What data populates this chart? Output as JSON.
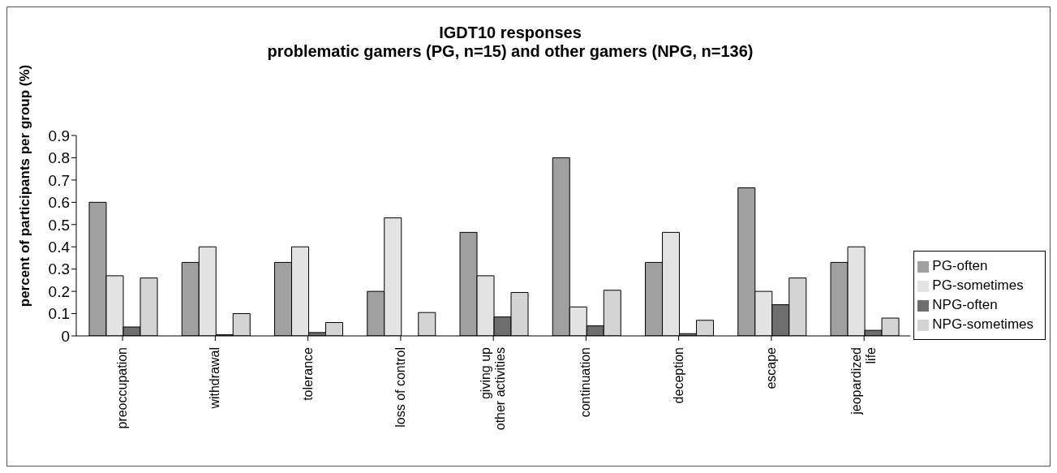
{
  "chart_data": {
    "type": "bar",
    "title": "IGDT10 responses",
    "subtitle": "problematic gamers (PG, n=15) and other gamers (NPG, n=136)",
    "ylabel": "percent of participants per group (%)",
    "categories": [
      "preoccupation",
      "withdrawal",
      "tolerance",
      "loss of control",
      "giving up\nother activities",
      "continuation",
      "deception",
      "escape",
      "jeopardized\nlife"
    ],
    "series": [
      {
        "name": "PG-often",
        "color": "#a0a0a0",
        "values": [
          0.6,
          0.33,
          0.33,
          0.2,
          0.465,
          0.8,
          0.33,
          0.665,
          0.33
        ]
      },
      {
        "name": "PG-sometimes",
        "color": "#e3e3e3",
        "values": [
          0.27,
          0.4,
          0.4,
          0.53,
          0.27,
          0.13,
          0.465,
          0.2,
          0.4
        ]
      },
      {
        "name": "NPG-often",
        "color": "#6e6e6e",
        "values": [
          0.04,
          0.005,
          0.015,
          0,
          0.085,
          0.045,
          0.01,
          0.14,
          0.025
        ]
      },
      {
        "name": "NPG-sometimes",
        "color": "#d4d4d4",
        "values": [
          0.26,
          0.1,
          0.06,
          0.105,
          0.195,
          0.205,
          0.07,
          0.26,
          0.08
        ]
      }
    ],
    "ylim": [
      0,
      0.9
    ],
    "yticks": [
      0,
      0.1,
      0.2,
      0.3,
      0.4,
      0.5,
      0.6,
      0.7,
      0.8,
      0.9
    ],
    "grid": false,
    "legend": "right"
  }
}
